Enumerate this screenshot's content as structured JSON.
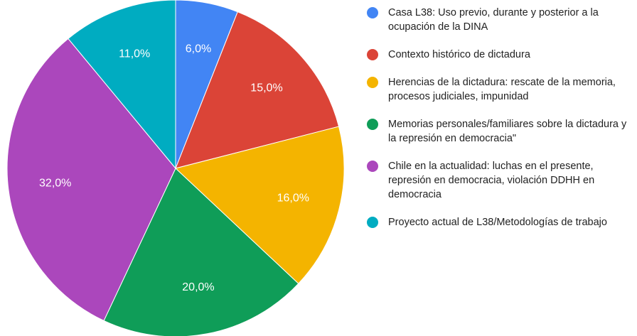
{
  "chart_data": {
    "type": "pie",
    "categories": [
      "Casa L38: Uso previo, durante y posterior a la ocupación de la DINA",
      "Contexto histórico de dictadura",
      "Herencias de la dictadura: rescate de la memoria, procesos judiciales, impunidad",
      "Memorias personales/familiares sobre la dictadura y la represión en democracia\"",
      "Chile en la actualidad: luchas en el presente, represión en democracia, violación DDHH en democracia",
      "Proyecto actual de L38/Metodologías de trabajo"
    ],
    "values": [
      6,
      15,
      16,
      20,
      32,
      11
    ],
    "value_labels": [
      "6,0%",
      "15,0%",
      "16,0%",
      "20,0%",
      "32,0%",
      "11,0%"
    ],
    "colors": [
      "#4285f4",
      "#db4437",
      "#f4b400",
      "#0f9d58",
      "#ab47bc",
      "#00acc1"
    ],
    "legend": "right"
  }
}
